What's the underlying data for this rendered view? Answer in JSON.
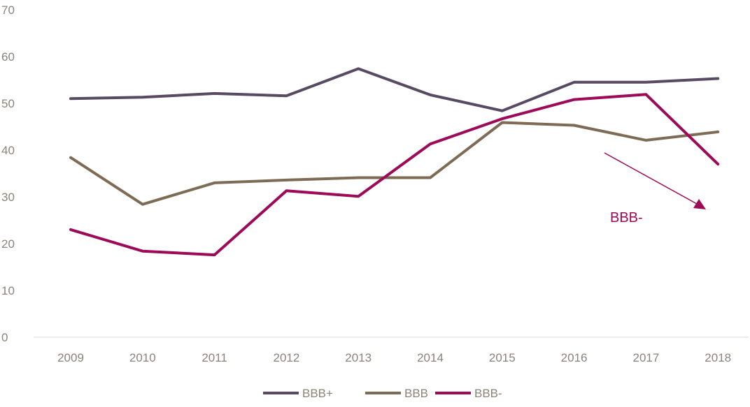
{
  "chart_data": {
    "type": "line",
    "title": "",
    "xlabel": "",
    "ylabel": "",
    "x": [
      "2009",
      "2010",
      "2011",
      "2012",
      "2013",
      "2014",
      "2015",
      "2016",
      "2017",
      "2018"
    ],
    "ylim": [
      0,
      70
    ],
    "yticks": [
      "0",
      "10",
      "20",
      "30",
      "40",
      "50",
      "60",
      "70"
    ],
    "grid": false,
    "legend_position": "bottom",
    "series": [
      {
        "name": "BBB+",
        "color": "#574a62",
        "values": [
          51.0,
          51.3,
          52.1,
          51.6,
          57.4,
          51.8,
          48.4,
          54.5,
          54.5,
          55.3
        ]
      },
      {
        "name": "BBB",
        "color": "#7d6b55",
        "values": [
          38.4,
          28.4,
          33.0,
          33.6,
          34.1,
          34.1,
          45.9,
          45.3,
          42.1,
          43.9
        ]
      },
      {
        "name": "BBB-",
        "color": "#9c0a58",
        "values": [
          23.0,
          18.4,
          17.6,
          31.3,
          30.1,
          41.3,
          46.7,
          50.8,
          51.9,
          37.0
        ]
      }
    ],
    "annotation": {
      "text": "BBB-",
      "color": "#9c0a58",
      "arrow": "downward trend toward 2018"
    }
  }
}
